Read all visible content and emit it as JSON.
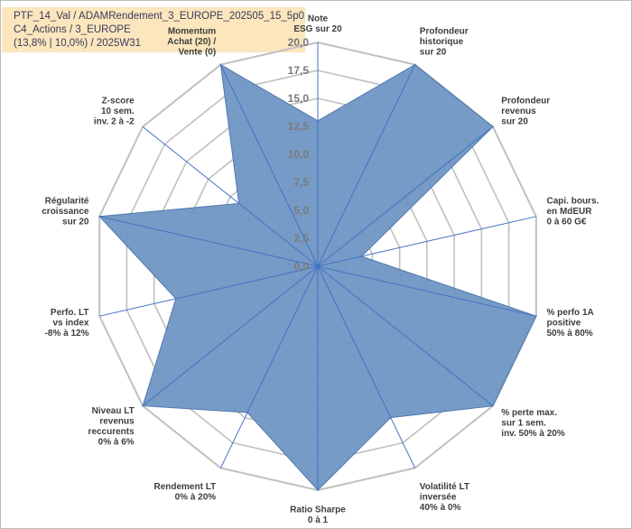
{
  "info": {
    "line1": "PTF_14_Val / ADAMRendement_3_EUROPE_202505_15_5p0",
    "line2": "C4_Actions / 3_EUROPE",
    "line3": "(13,8% | 10,0%) / 2025W31"
  },
  "colors": {
    "fill": "#6f96c4",
    "stroke": "#4f79ad",
    "axis": "#4472c4",
    "grid": "#c0c0c0",
    "info_bg": "#fbe6bd"
  },
  "chart_data": {
    "type": "radar",
    "rlim": [
      0,
      20
    ],
    "ticks": [
      "0,0",
      "2,5",
      "5,0",
      "7,5",
      "10,0",
      "12,5",
      "15,0",
      "17,5",
      "20,0"
    ],
    "grid": true,
    "axes": [
      {
        "label": [
          "Note",
          "ESG sur 20"
        ]
      },
      {
        "label": [
          "Profondeur",
          "historique",
          "sur 20"
        ]
      },
      {
        "label": [
          "Profondeur",
          "revenus",
          "sur 20"
        ]
      },
      {
        "label": [
          "Capi. bours.",
          "en MdEUR",
          "0 à 60 G€"
        ]
      },
      {
        "label": [
          "% perfo 1A",
          "positive",
          "50% à 80%"
        ]
      },
      {
        "label": [
          "% perte max.",
          "sur 1 sem.",
          "inv. 50% à 20%"
        ]
      },
      {
        "label": [
          "Volatilité LT",
          "inversée",
          "40% à 0%"
        ]
      },
      {
        "label": [
          "Ratio Sharpe",
          "0 à 1"
        ]
      },
      {
        "label": [
          "Rendement LT",
          "0% à 20%"
        ]
      },
      {
        "label": [
          "Niveau LT",
          "revenus",
          "reccurents",
          "0% à 6%"
        ]
      },
      {
        "label": [
          "Perfo. LT",
          "vs index",
          "-8% à 12%"
        ]
      },
      {
        "label": [
          "Régularité",
          "croissance",
          "sur 20"
        ]
      },
      {
        "label": [
          "Z-score",
          "10 sem.",
          "inv. 2 à -2"
        ]
      },
      {
        "label": [
          "Momentum",
          "Achat (20) /",
          "Vente (0)"
        ]
      }
    ],
    "series": [
      {
        "values": [
          13,
          20,
          20,
          4,
          20,
          20,
          15,
          20,
          14.5,
          20,
          13,
          20,
          9,
          20
        ]
      }
    ]
  }
}
